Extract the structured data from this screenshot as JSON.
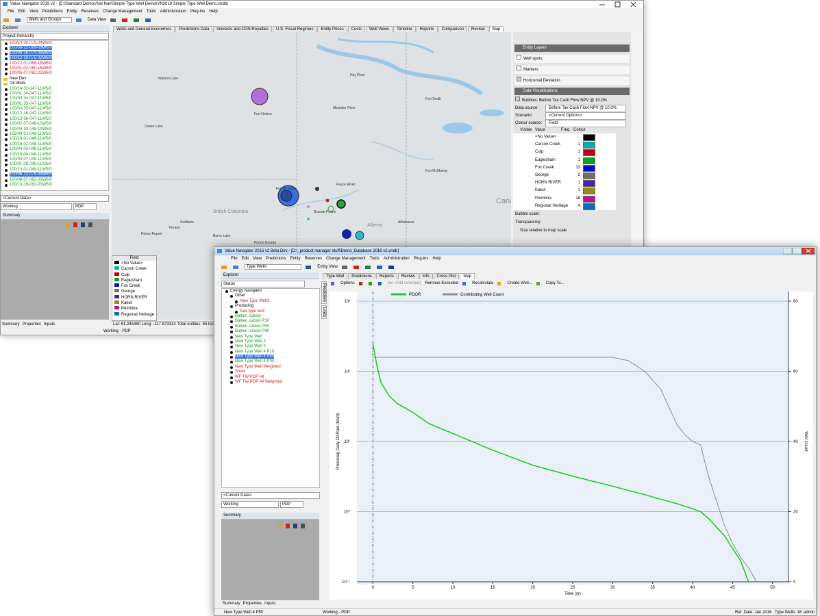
{
  "back_window": {
    "title": "Value Navigator 2019 v2 - [C:\\Standard Demos\\Val Nav\\Simple Type Well Demo\\VN2019 Simple Type Well Demo.vndb]",
    "menu": [
      "File",
      "Edit",
      "View",
      "Predictions",
      "Entity",
      "Reserves",
      "Change Management",
      "Tools",
      "Administration",
      "Plug-ins",
      "Help"
    ],
    "toolbar": {
      "combo": "Wells and Groups",
      "data_view": "Data View"
    },
    "explorer": {
      "title": "Explorer",
      "hierarchy": "Project Hierarchy",
      "items": [
        {
          "label": "100/14-20-079-24W6/0",
          "style": "red"
        },
        {
          "label": "100/09-22-069-08W6/0",
          "style": "selected"
        },
        {
          "label": "100/09-26-073-09W6/0",
          "style": "selected"
        },
        {
          "label": "100/12-19-075-02W6/0",
          "style": "selected"
        },
        {
          "label": "100/12-01-066-16W6/0",
          "style": "red"
        },
        {
          "label": "100/01-02-080-16W6/0",
          "style": "red"
        },
        {
          "label": "100/05-07-082-22W6/0",
          "style": "red"
        },
        {
          "label": "New Dev",
          "style": "folder"
        },
        {
          "label": "Oil Wells",
          "style": "folder"
        },
        {
          "label": "100/14-32-047-11W5/0",
          "style": "green"
        },
        {
          "label": "100/01-34-047-11W5/0",
          "style": "green"
        },
        {
          "label": "100/03-34-047-11W5/0",
          "style": "green"
        },
        {
          "label": "100/01-35-047-11W5/0",
          "style": "green"
        },
        {
          "label": "100/03-35-047-11W5/0",
          "style": "green"
        },
        {
          "label": "100/12-36-047-11W5/0",
          "style": "green"
        },
        {
          "label": "100/13-36-047-11W5/0",
          "style": "green"
        },
        {
          "label": "100/02-07-048-10W5/0",
          "style": "green"
        },
        {
          "label": "100/04-30-048-10W5/0",
          "style": "green"
        },
        {
          "label": "102/09-01-048-11W5/0",
          "style": "green"
        },
        {
          "label": "100/16-01-048-11W5/0",
          "style": "green"
        },
        {
          "label": "100/16-02-048-11W5/0",
          "style": "green"
        },
        {
          "label": "100/04-03-048-11W5/0",
          "style": "green"
        },
        {
          "label": "100/16-04-048-11W5/0",
          "style": "green"
        },
        {
          "label": "100/04-07-048-11W5/0",
          "style": "green"
        },
        {
          "label": "100/01-08-048-11W5/0",
          "style": "green"
        },
        {
          "label": "100/13-01-049-11W5/0",
          "style": "green"
        },
        {
          "label": "100/06-13-075-09W6/0",
          "style": "selected"
        },
        {
          "label": "100/08-07-082-03W6/0",
          "style": "green"
        },
        {
          "label": "100/13-19-082-03W6/0",
          "style": "green"
        }
      ]
    },
    "current_data": "<Current Data>",
    "working": "Working",
    "pdp": "PDP",
    "summary": "Summary",
    "bottom_tabs": [
      "Summary",
      "Properties",
      "Inputs"
    ],
    "status": {
      "coords": "Lat: 61.245480  Long: -117.873314",
      "entities": "Total entities: 65  locations: 4",
      "mode": "Working - PDP"
    },
    "tabs": [
      "Wells and General Economics",
      "Predictions Data",
      "Interests and CDN Royalties",
      "U.S. Fiscal Regimes",
      "Entity Prices",
      "Costs",
      "Well Views",
      "Timeline",
      "Reports",
      "Comparison",
      "Review",
      "Map"
    ],
    "map_labels": [
      "Hay River",
      "Fort Smith",
      "Watson Lake",
      "Fort Nelson",
      "Meander River",
      "Dease Lake",
      "Fort McMurray",
      "Peace River",
      "Fort St. John",
      "Grande Prairie",
      "British Columbia",
      "Alberta",
      "Athabasca",
      "Smithers",
      "Terrace",
      "Prince Rupert",
      "Burns Lake",
      "Prince George",
      "Cana"
    ],
    "field_legend_title": "Field",
    "layers": {
      "entity_layers": "Entity Layers",
      "options": [
        {
          "label": "Well spots",
          "checked": false
        },
        {
          "label": "Markers",
          "checked": false
        },
        {
          "label": "Horizontal Deviation",
          "checked": true
        }
      ],
      "data_visualizations": "Data Visualizations",
      "bubbles": "Bubbles: Before Tax Cash Flow NPV @ 10.0%",
      "settings": [
        {
          "label": "Data source:",
          "value": "Before Tax Cash Flow NPV @ 10.0%"
        },
        {
          "label": "Scenario:",
          "value": "<Current Options>"
        },
        {
          "label": "Colour source:",
          "value": "Field"
        }
      ],
      "table_headers": [
        "Visible",
        "Value",
        "Freq.",
        "Colour"
      ],
      "rows": [
        {
          "value": "<No Value>",
          "freq": null,
          "color": "#000000"
        },
        {
          "value": "Carson Creek",
          "freq": "1",
          "color": "#00b0b8"
        },
        {
          "value": "Culp",
          "freq": "1",
          "color": "#c00010"
        },
        {
          "value": "Eaglesham",
          "freq": "1",
          "color": "#10a020"
        },
        {
          "value": "Fox Creek",
          "freq": "13",
          "color": "#0010c0"
        },
        {
          "value": "George",
          "freq": "2",
          "color": "#707070"
        },
        {
          "value": "HORN RIVER",
          "freq": "1",
          "color": "#5020b0"
        },
        {
          "value": "Kakut",
          "freq": "1",
          "color": "#909018"
        },
        {
          "value": "Pembina",
          "freq": "18",
          "color": "#c01090"
        },
        {
          "value": "Regional Heritage",
          "freq": "4",
          "color": "#1068c0"
        }
      ],
      "bubble_scale": "Bubble scale:",
      "transparency": "Transparency:",
      "size_relative": "Size relative to map scale"
    }
  },
  "front_window": {
    "title": "Value Navigator 2016 v2 Beta Dev - [D:\\_product manager stuff\\Demo_Database 2016 v2.vndb]",
    "menu": [
      "File",
      "Edit",
      "View",
      "Predictions",
      "Entity",
      "Reserves",
      "Change Management",
      "Tools",
      "Administration",
      "Plug-ins",
      "Help"
    ],
    "toolbar": {
      "combo": "Type Wells",
      "entity_view": "Entity View"
    },
    "explorer": {
      "title": "Explorer",
      "combo": "Status",
      "items": [
        {
          "label": "Energy Navigator",
          "style": "black",
          "level": 0
        },
        {
          "label": "Other",
          "style": "black",
          "level": 1
        },
        {
          "label": "New Type Well3",
          "style": "red",
          "level": 2
        },
        {
          "label": "Producing",
          "style": "black",
          "level": 1
        },
        {
          "label": "Gas type well",
          "style": "red",
          "level": 2
        },
        {
          "label": "Balken subset",
          "style": "green",
          "level": 1
        },
        {
          "label": "Balken subset P10",
          "style": "green",
          "level": 1
        },
        {
          "label": "Balken subset P50",
          "style": "green",
          "level": 1
        },
        {
          "label": "Balken subset P90",
          "style": "green",
          "level": 1
        },
        {
          "label": "New Type Well",
          "style": "green",
          "level": 1
        },
        {
          "label": "New Type Well 2",
          "style": "green",
          "level": 1
        },
        {
          "label": "New Type Well 3",
          "style": "green",
          "level": 1
        },
        {
          "label": "New Type Well 4 P10",
          "style": "green",
          "level": 1
        },
        {
          "label": "New Type Well 4 P50",
          "style": "selected",
          "level": 1
        },
        {
          "label": "New Type Well 4 P90",
          "style": "green",
          "level": 1
        },
        {
          "label": "New Type Well Weighted",
          "style": "red",
          "level": 1
        },
        {
          "label": "Small",
          "style": "red",
          "level": 1
        },
        {
          "label": "WF TW PDP All",
          "style": "red",
          "level": 1
        },
        {
          "label": "WF TW PDP All Weighted",
          "style": "red",
          "level": 1
        }
      ]
    },
    "tabs": [
      "Type Well",
      "Predictions",
      "Reports",
      "Review",
      "Info",
      "Cross Plot",
      "Map"
    ],
    "side_tabs": [
      "Prediction",
      "Links"
    ],
    "tools": {
      "options": "Options",
      "no_child": "(no child selected)",
      "remove": "Remove Excluded",
      "recalc": "Recalculate",
      "create": "Create Well...",
      "copy": "Copy To..."
    },
    "current_data": "<Current Data>",
    "working": "Working",
    "pdp": "PDP",
    "summary": "Summary",
    "bottom_tabs": [
      "Summary",
      "Properties",
      "Inputs"
    ],
    "status": {
      "entity": "New Type Well 4 P50",
      "mode": "Working - PDP",
      "ref_date": "Ref. Date: Jan 2016",
      "type_wells": "Type Wells: 16",
      "user": "admin"
    }
  },
  "chart_data": {
    "type": "line",
    "x_label": "Time (yr)",
    "y_label": "Producing Daily Oil Rate (bbl/d)",
    "y2_label": "Well Count",
    "x": [
      0,
      0.5,
      1,
      2,
      3,
      5,
      7,
      10,
      15,
      20,
      25,
      30,
      32,
      34,
      36,
      37,
      38,
      39,
      40,
      41,
      42,
      43,
      44,
      45,
      46,
      47,
      48
    ],
    "series": [
      {
        "name": "PDOR",
        "color": "#22cc22",
        "values": [
          250,
          120,
          70,
          45,
          35,
          26,
          18,
          13,
          7.5,
          4.6,
          3.2,
          2.3,
          2.0,
          1.75,
          1.5,
          1.4,
          1.3,
          1.2,
          1.1,
          1.0,
          0.8,
          0.6,
          0.45,
          0.3,
          0.2,
          0.1,
          null
        ]
      },
      {
        "name": "Contributing Well Count",
        "color": "#8c8c8c",
        "axis": "y2",
        "values": [
          64,
          64,
          64,
          64,
          64,
          64,
          64,
          64,
          64,
          64,
          64,
          64,
          63,
          60,
          55,
          50,
          45,
          42,
          40,
          39,
          30,
          23,
          16,
          11,
          7,
          4,
          0
        ]
      }
    ],
    "xlim": [
      -2,
      52
    ],
    "xticks": [
      0,
      5,
      10,
      15,
      20,
      25,
      30,
      35,
      40,
      45,
      50
    ],
    "ylim": [
      0.1,
      1000
    ],
    "log_y": true,
    "yticks": [
      {
        "value": 0.1,
        "label": "10⁻¹"
      },
      {
        "value": 1,
        "label": "10⁰"
      },
      {
        "value": 10,
        "label": "10¹"
      },
      {
        "value": 100,
        "label": "10²"
      },
      {
        "value": 1000,
        "label": "10³"
      }
    ],
    "y2lim": [
      0,
      80
    ],
    "y2ticks": [
      0,
      20,
      40,
      60,
      80
    ],
    "grid": true
  }
}
